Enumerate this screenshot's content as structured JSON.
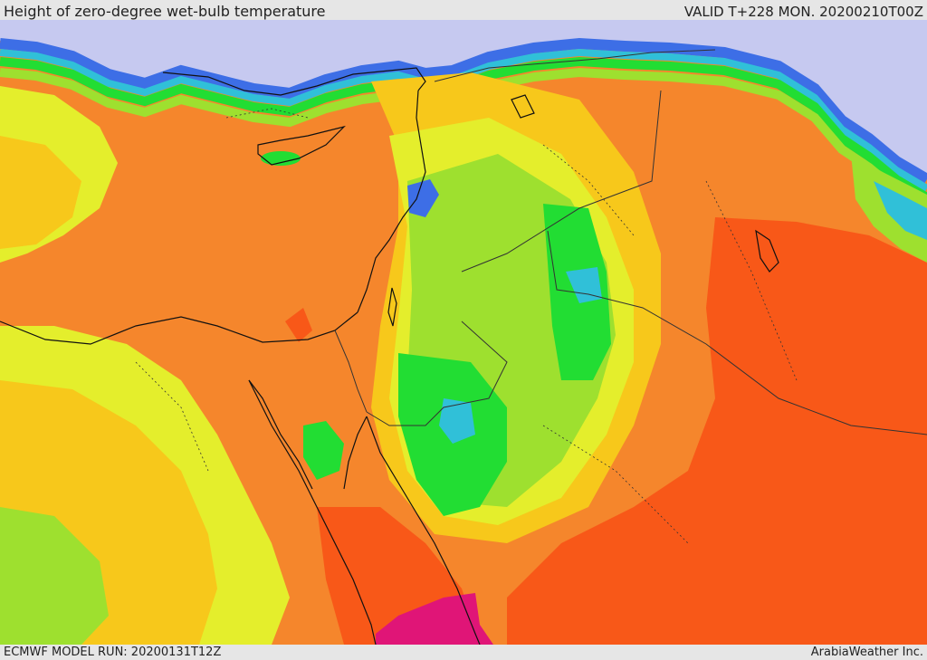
{
  "header": {
    "title": "Height of zero-degree wet-bulb temperature",
    "valid": "VALID T+228 MON. 20200210T00Z"
  },
  "footer": {
    "model_run": "ECMWF MODEL RUN: 20200131T12Z",
    "provider": "ArabiaWeather Inc."
  },
  "palette": {
    "background": "#e6e6e6",
    "cold_lavender": "#c6c9f0",
    "blue": "#3d6ee6",
    "cyan": "#30c0d8",
    "green": "#22dd33",
    "light_green": "#9ee02f",
    "yellow": "#e4ee2c",
    "yellow_orange": "#f7c81b",
    "orange": "#f6a123",
    "dark_orange": "#f5862c",
    "red_orange": "#f85818",
    "magenta": "#e01577",
    "coastline": "#111111",
    "border": "#333333"
  }
}
